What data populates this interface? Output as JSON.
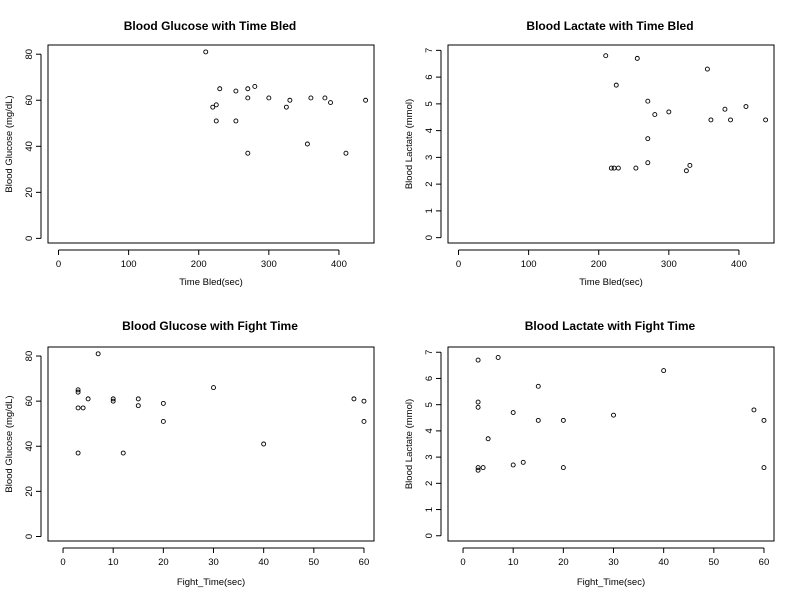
{
  "chart_data": [
    {
      "type": "scatter",
      "title": "Blood Glucose with Time Bled",
      "xlabel": "Time Bled(sec)",
      "ylabel": "Blood Glucose (mg/dL)",
      "xlim": [
        -15,
        450
      ],
      "ylim": [
        -2,
        84
      ],
      "xticks": [
        0,
        100,
        200,
        300,
        400
      ],
      "yticks": [
        0,
        20,
        40,
        60,
        80
      ],
      "points": [
        {
          "x": 210,
          "y": 81
        },
        {
          "x": 220,
          "y": 57
        },
        {
          "x": 225,
          "y": 58
        },
        {
          "x": 225,
          "y": 51
        },
        {
          "x": 230,
          "y": 65
        },
        {
          "x": 253,
          "y": 64
        },
        {
          "x": 253,
          "y": 51
        },
        {
          "x": 270,
          "y": 61
        },
        {
          "x": 270,
          "y": 65
        },
        {
          "x": 270,
          "y": 37
        },
        {
          "x": 280,
          "y": 66
        },
        {
          "x": 300,
          "y": 61
        },
        {
          "x": 325,
          "y": 57
        },
        {
          "x": 330,
          "y": 60
        },
        {
          "x": 355,
          "y": 41
        },
        {
          "x": 360,
          "y": 61
        },
        {
          "x": 380,
          "y": 61
        },
        {
          "x": 388,
          "y": 59
        },
        {
          "x": 410,
          "y": 37
        },
        {
          "x": 438,
          "y": 60
        }
      ]
    },
    {
      "type": "scatter",
      "title": "Blood Lactate with Time Bled",
      "xlabel": "Time Bled(sec)",
      "ylabel": "Blood Lactate (mmol)",
      "xlim": [
        -15,
        450
      ],
      "ylim": [
        -0.2,
        7.2
      ],
      "xticks": [
        0,
        100,
        200,
        300,
        400
      ],
      "yticks": [
        0,
        1,
        2,
        3,
        4,
        5,
        6,
        7
      ],
      "points": [
        {
          "x": 210,
          "y": 6.8
        },
        {
          "x": 218,
          "y": 2.6
        },
        {
          "x": 222,
          "y": 2.6
        },
        {
          "x": 225,
          "y": 5.7
        },
        {
          "x": 228,
          "y": 2.6
        },
        {
          "x": 253,
          "y": 2.6
        },
        {
          "x": 255,
          "y": 6.7
        },
        {
          "x": 270,
          "y": 5.1
        },
        {
          "x": 270,
          "y": 3.7
        },
        {
          "x": 270,
          "y": 2.8
        },
        {
          "x": 280,
          "y": 4.6
        },
        {
          "x": 300,
          "y": 4.7
        },
        {
          "x": 325,
          "y": 2.5
        },
        {
          "x": 330,
          "y": 2.7
        },
        {
          "x": 355,
          "y": 6.3
        },
        {
          "x": 360,
          "y": 4.4
        },
        {
          "x": 380,
          "y": 4.8
        },
        {
          "x": 388,
          "y": 4.4
        },
        {
          "x": 410,
          "y": 4.9
        },
        {
          "x": 438,
          "y": 4.4
        }
      ]
    },
    {
      "type": "scatter",
      "title": "Blood Glucose with Fight Time",
      "xlabel": "Fight_Time(sec)",
      "ylabel": "Blood Glucose (mg/dL)",
      "xlim": [
        -3,
        62
      ],
      "ylim": [
        -2,
        84
      ],
      "xticks": [
        0,
        10,
        20,
        30,
        40,
        50,
        60
      ],
      "yticks": [
        0,
        20,
        40,
        60,
        80
      ],
      "points": [
        {
          "x": 3,
          "y": 65
        },
        {
          "x": 3,
          "y": 64
        },
        {
          "x": 3,
          "y": 57
        },
        {
          "x": 3,
          "y": 37
        },
        {
          "x": 4,
          "y": 57
        },
        {
          "x": 5,
          "y": 61
        },
        {
          "x": 7,
          "y": 81
        },
        {
          "x": 10,
          "y": 61
        },
        {
          "x": 10,
          "y": 60
        },
        {
          "x": 12,
          "y": 37
        },
        {
          "x": 15,
          "y": 61
        },
        {
          "x": 15,
          "y": 58
        },
        {
          "x": 20,
          "y": 59
        },
        {
          "x": 20,
          "y": 51
        },
        {
          "x": 30,
          "y": 66
        },
        {
          "x": 40,
          "y": 41
        },
        {
          "x": 58,
          "y": 61
        },
        {
          "x": 60,
          "y": 60
        },
        {
          "x": 60,
          "y": 51
        }
      ]
    },
    {
      "type": "scatter",
      "title": "Blood Lactate with Fight Time",
      "xlabel": "Fight_Time(sec)",
      "ylabel": "Blood Lactate (mmol)",
      "xlim": [
        -3,
        62
      ],
      "ylim": [
        -0.2,
        7.2
      ],
      "xticks": [
        0,
        10,
        20,
        30,
        40,
        50,
        60
      ],
      "yticks": [
        0,
        1,
        2,
        3,
        4,
        5,
        6,
        7
      ],
      "points": [
        {
          "x": 3,
          "y": 6.7
        },
        {
          "x": 3,
          "y": 5.1
        },
        {
          "x": 3,
          "y": 4.9
        },
        {
          "x": 3,
          "y": 2.6
        },
        {
          "x": 3,
          "y": 2.5
        },
        {
          "x": 4,
          "y": 2.6
        },
        {
          "x": 5,
          "y": 3.7
        },
        {
          "x": 7,
          "y": 6.8
        },
        {
          "x": 10,
          "y": 4.7
        },
        {
          "x": 10,
          "y": 2.7
        },
        {
          "x": 12,
          "y": 2.8
        },
        {
          "x": 15,
          "y": 5.7
        },
        {
          "x": 15,
          "y": 4.4
        },
        {
          "x": 20,
          "y": 4.4
        },
        {
          "x": 20,
          "y": 2.6
        },
        {
          "x": 30,
          "y": 4.6
        },
        {
          "x": 40,
          "y": 6.3
        },
        {
          "x": 58,
          "y": 4.8
        },
        {
          "x": 60,
          "y": 4.4
        },
        {
          "x": 60,
          "y": 2.6
        }
      ]
    }
  ]
}
